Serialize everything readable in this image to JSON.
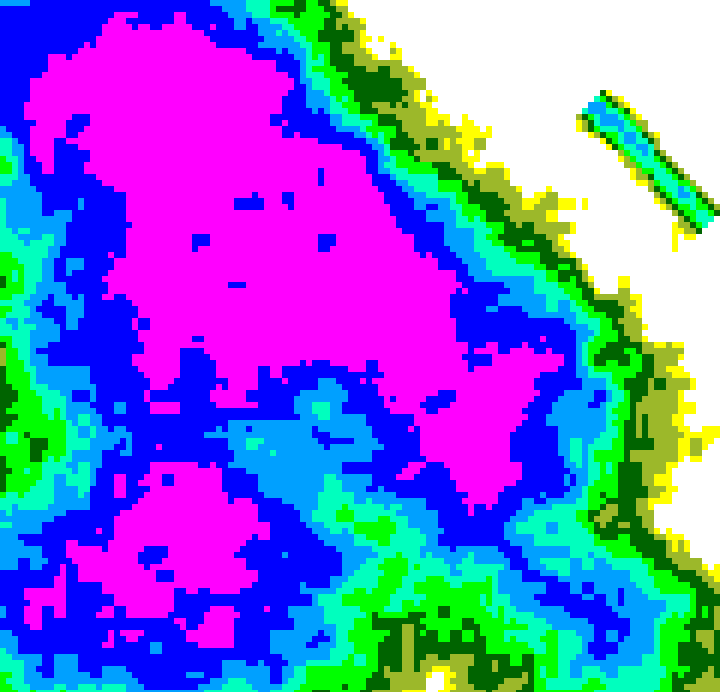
{
  "map": {
    "type": "precipitation-radar",
    "background_color": "#ffffff",
    "intensity_scale": [
      {
        "level": 0,
        "color": "#ffffff"
      },
      {
        "level": 1,
        "color": "#ffff00"
      },
      {
        "level": 2,
        "color": "#9cb82a"
      },
      {
        "level": 3,
        "color": "#006400"
      },
      {
        "level": 4,
        "color": "#00ff00"
      },
      {
        "level": 5,
        "color": "#00ffbe"
      },
      {
        "level": 6,
        "color": "#00a0ff"
      },
      {
        "level": 7,
        "color": "#0000ff"
      },
      {
        "level": 8,
        "color": "#ff00ff"
      }
    ]
  }
}
